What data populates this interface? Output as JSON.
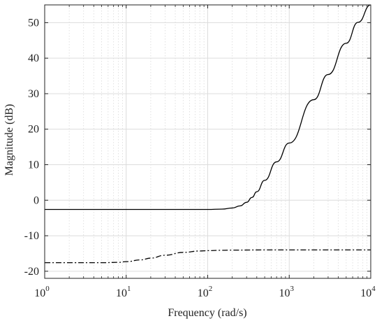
{
  "chart_data": {
    "type": "line",
    "xscale": "log",
    "xlim": [
      1,
      10000
    ],
    "ylim": [
      -22,
      55
    ],
    "xlabel": "Frequency  (rad/s)",
    "ylabel": "Magnitude (dB)",
    "grid": true,
    "x_ticks": [
      {
        "base": "10",
        "exp": "0",
        "value": 1
      },
      {
        "base": "10",
        "exp": "1",
        "value": 10
      },
      {
        "base": "10",
        "exp": "2",
        "value": 100
      },
      {
        "base": "10",
        "exp": "3",
        "value": 1000
      },
      {
        "base": "10",
        "exp": "4",
        "value": 10000
      }
    ],
    "y_ticks": [
      {
        "label": "50",
        "value": 50
      },
      {
        "label": "40",
        "value": 40
      },
      {
        "label": "30",
        "value": 30
      },
      {
        "label": "20",
        "value": 20
      },
      {
        "label": "10",
        "value": 10
      },
      {
        "label": "0",
        "value": 0
      },
      {
        "label": "-10",
        "value": -10
      },
      {
        "label": "-20",
        "value": -20
      }
    ],
    "series": [
      {
        "style": "solid",
        "color": "#000000",
        "x": [
          1,
          10,
          50,
          100,
          150,
          200,
          250,
          300,
          350,
          400,
          500,
          700,
          1000,
          2000,
          3000,
          5000,
          7000,
          10000
        ],
        "y": [
          -2.6,
          -2.6,
          -2.6,
          -2.6,
          -2.5,
          -2.2,
          -1.6,
          -0.6,
          0.8,
          2.4,
          5.6,
          10.8,
          16.1,
          28.3,
          35.4,
          44.2,
          50.1,
          55.0
        ]
      },
      {
        "style": "dashdot",
        "color": "#000000",
        "x": [
          1,
          2,
          5,
          8,
          10,
          15,
          20,
          30,
          50,
          80,
          100,
          150,
          200,
          500,
          1000,
          10000
        ],
        "y": [
          -17.6,
          -17.6,
          -17.6,
          -17.5,
          -17.3,
          -16.8,
          -16.3,
          -15.5,
          -14.7,
          -14.3,
          -14.2,
          -14.1,
          -14.05,
          -14.0,
          -14.0,
          -14.0
        ]
      }
    ]
  }
}
